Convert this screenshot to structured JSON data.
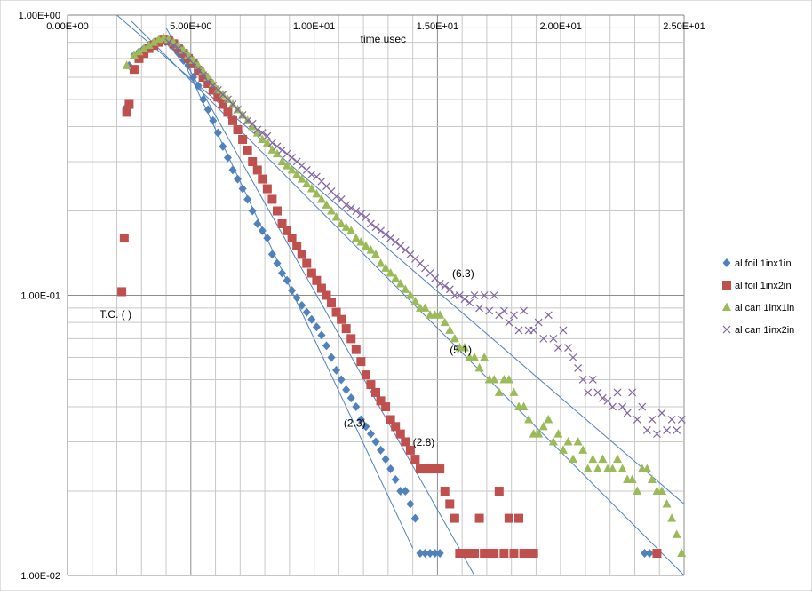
{
  "chart_data": {
    "type": "scatter",
    "title": "",
    "xlabel": "time usec",
    "ylabel": "",
    "xlim": [
      0,
      25
    ],
    "ylim": [
      0.01,
      1
    ],
    "y_scale": "log",
    "x_axis_position": "top",
    "grid": true,
    "legend_position": "right",
    "x_tick_labels": [
      "0.00E+00",
      "5.00E+00",
      "1.00E+01",
      "1.50E+01",
      "2.00E+01",
      "2.50E+01"
    ],
    "x_ticks": [
      0,
      5,
      10,
      15,
      20,
      25
    ],
    "y_tick_labels": [
      "1.00E+00",
      "1.00E-01",
      "1.00E-02"
    ],
    "y_ticks": [
      1,
      0.1,
      0.01
    ],
    "annotations": [
      {
        "text": "T.C. ( )",
        "x": 1.3,
        "y": 0.083
      },
      {
        "text": "(6.3)",
        "x": 15.6,
        "y": 0.116
      },
      {
        "text": "(5.1)",
        "x": 15.5,
        "y": 0.062
      },
      {
        "text": "(2.3)",
        "x": 11.2,
        "y": 0.034
      },
      {
        "text": "(2.8)",
        "x": 14.0,
        "y": 0.029
      }
    ],
    "series": [
      {
        "name": "al foil 1inx1in",
        "color": "#4F81BD",
        "marker": "diamond",
        "x": [
          2.2,
          2.4,
          2.5,
          2.7,
          2.9,
          3.1,
          3.3,
          3.5,
          3.7,
          3.9,
          4.1,
          4.3,
          4.5,
          4.7,
          4.9,
          5.1,
          5.3,
          5.5,
          5.7,
          5.9,
          6.1,
          6.3,
          6.5,
          6.7,
          6.9,
          7.1,
          7.3,
          7.5,
          7.7,
          7.9,
          8.1,
          8.3,
          8.5,
          8.7,
          8.9,
          9.1,
          9.3,
          9.5,
          9.7,
          9.9,
          10.1,
          10.3,
          10.5,
          10.7,
          10.9,
          11.1,
          11.3,
          11.5,
          11.7,
          11.9,
          12.1,
          12.3,
          12.5,
          12.7,
          12.9,
          13.1,
          13.3,
          13.5,
          13.7,
          13.9,
          14.1,
          14.3,
          14.5,
          14.7,
          14.9,
          15.1,
          23.4,
          23.6
        ],
        "y": [
          0.103,
          0.47,
          0.66,
          0.72,
          0.74,
          0.76,
          0.78,
          0.8,
          0.81,
          0.82,
          0.8,
          0.77,
          0.73,
          0.69,
          0.66,
          0.6,
          0.56,
          0.5,
          0.46,
          0.42,
          0.38,
          0.34,
          0.31,
          0.28,
          0.26,
          0.24,
          0.22,
          0.2,
          0.18,
          0.17,
          0.16,
          0.14,
          0.13,
          0.12,
          0.113,
          0.104,
          0.098,
          0.092,
          0.087,
          0.082,
          0.077,
          0.072,
          0.066,
          0.06,
          0.054,
          0.05,
          0.046,
          0.043,
          0.04,
          0.036,
          0.034,
          0.032,
          0.03,
          0.028,
          0.026,
          0.024,
          0.022,
          0.02,
          0.02,
          0.018,
          0.016,
          0.012,
          0.012,
          0.012,
          0.012,
          0.012,
          0.012,
          0.012
        ]
      },
      {
        "name": "al foil 1inx2in",
        "color": "#C0504D",
        "marker": "square",
        "x": [
          2.2,
          2.3,
          2.4,
          2.5,
          2.7,
          2.9,
          3.1,
          3.3,
          3.5,
          3.7,
          3.9,
          4.1,
          4.3,
          4.5,
          4.7,
          4.9,
          5.1,
          5.3,
          5.5,
          5.7,
          5.9,
          6.1,
          6.3,
          6.5,
          6.7,
          6.9,
          7.1,
          7.3,
          7.5,
          7.7,
          7.9,
          8.1,
          8.3,
          8.5,
          8.7,
          8.9,
          9.1,
          9.3,
          9.5,
          9.7,
          9.9,
          10.1,
          10.3,
          10.5,
          10.7,
          10.9,
          11.1,
          11.3,
          11.5,
          11.7,
          11.9,
          12.1,
          12.3,
          12.5,
          12.7,
          12.9,
          13.1,
          13.3,
          13.5,
          13.7,
          13.9,
          14.1,
          14.3,
          14.5,
          14.7,
          14.9,
          15.1,
          15.3,
          15.5,
          15.7,
          15.9,
          16.1,
          16.3,
          16.5,
          16.7,
          16.9,
          17.1,
          17.3,
          17.5,
          17.7,
          17.9,
          18.1,
          18.3,
          18.5,
          18.7,
          18.9,
          23.9
        ],
        "y": [
          0.103,
          0.16,
          0.45,
          0.48,
          0.64,
          0.7,
          0.73,
          0.76,
          0.78,
          0.8,
          0.82,
          0.81,
          0.79,
          0.76,
          0.73,
          0.7,
          0.67,
          0.63,
          0.6,
          0.57,
          0.54,
          0.51,
          0.48,
          0.45,
          0.42,
          0.39,
          0.36,
          0.33,
          0.3,
          0.28,
          0.26,
          0.24,
          0.22,
          0.2,
          0.18,
          0.17,
          0.16,
          0.15,
          0.14,
          0.13,
          0.12,
          0.113,
          0.106,
          0.1,
          0.094,
          0.087,
          0.082,
          0.076,
          0.07,
          0.064,
          0.058,
          0.052,
          0.048,
          0.045,
          0.042,
          0.04,
          0.036,
          0.034,
          0.032,
          0.03,
          0.028,
          0.026,
          0.024,
          0.024,
          0.024,
          0.024,
          0.024,
          0.02,
          0.018,
          0.016,
          0.012,
          0.012,
          0.012,
          0.012,
          0.016,
          0.012,
          0.012,
          0.012,
          0.02,
          0.012,
          0.016,
          0.012,
          0.016,
          0.012,
          0.012,
          0.012,
          0.012
        ]
      },
      {
        "name": "al can 1inx1in",
        "color": "#9BBB59",
        "marker": "triangle",
        "x": [
          2.4,
          2.7,
          2.9,
          3.1,
          3.3,
          3.5,
          3.7,
          3.9,
          4.1,
          4.3,
          4.5,
          4.7,
          4.9,
          5.1,
          5.3,
          5.5,
          5.7,
          5.9,
          6.1,
          6.3,
          6.5,
          6.7,
          6.9,
          7.1,
          7.3,
          7.5,
          7.7,
          7.9,
          8.1,
          8.3,
          8.5,
          8.7,
          8.9,
          9.1,
          9.3,
          9.5,
          9.7,
          9.9,
          10.1,
          10.3,
          10.5,
          10.7,
          10.9,
          11.1,
          11.3,
          11.5,
          11.7,
          11.9,
          12.1,
          12.3,
          12.5,
          12.7,
          12.9,
          13.1,
          13.3,
          13.5,
          13.7,
          13.9,
          14.1,
          14.3,
          14.5,
          14.7,
          14.9,
          15.1,
          15.3,
          15.5,
          15.7,
          15.9,
          16.1,
          16.3,
          16.5,
          16.7,
          16.9,
          17.1,
          17.3,
          17.5,
          17.7,
          17.9,
          18.1,
          18.3,
          18.5,
          18.7,
          18.9,
          19.1,
          19.3,
          19.5,
          19.7,
          19.9,
          20.1,
          20.3,
          20.5,
          20.7,
          20.9,
          21.1,
          21.3,
          21.5,
          21.7,
          21.9,
          22.1,
          22.3,
          22.5,
          22.7,
          22.9,
          23.1,
          23.3,
          23.5,
          23.7,
          23.9,
          24.1,
          24.3,
          24.5,
          24.7,
          24.9
        ],
        "y": [
          0.66,
          0.72,
          0.74,
          0.76,
          0.78,
          0.8,
          0.82,
          0.83,
          0.82,
          0.8,
          0.78,
          0.75,
          0.72,
          0.69,
          0.66,
          0.63,
          0.6,
          0.57,
          0.54,
          0.52,
          0.5,
          0.48,
          0.46,
          0.44,
          0.42,
          0.4,
          0.38,
          0.36,
          0.35,
          0.33,
          0.32,
          0.3,
          0.29,
          0.28,
          0.27,
          0.26,
          0.25,
          0.24,
          0.23,
          0.22,
          0.21,
          0.2,
          0.19,
          0.18,
          0.175,
          0.17,
          0.16,
          0.155,
          0.15,
          0.145,
          0.14,
          0.13,
          0.125,
          0.12,
          0.115,
          0.11,
          0.105,
          0.1,
          0.095,
          0.09,
          0.09,
          0.085,
          0.085,
          0.085,
          0.08,
          0.075,
          0.07,
          0.065,
          0.065,
          0.06,
          0.06,
          0.055,
          0.06,
          0.05,
          0.05,
          0.045,
          0.05,
          0.05,
          0.045,
          0.04,
          0.04,
          0.036,
          0.032,
          0.032,
          0.034,
          0.036,
          0.03,
          0.032,
          0.028,
          0.03,
          0.026,
          0.03,
          0.028,
          0.024,
          0.026,
          0.024,
          0.026,
          0.024,
          0.024,
          0.026,
          0.024,
          0.022,
          0.022,
          0.02,
          0.024,
          0.024,
          0.022,
          0.02,
          0.02,
          0.018,
          0.016,
          0.014,
          0.012
        ]
      },
      {
        "name": "al can 1inx2in",
        "color": "#8064A2",
        "marker": "x",
        "x": [
          4.1,
          4.3,
          4.5,
          4.7,
          4.9,
          5.1,
          5.3,
          5.5,
          5.7,
          5.9,
          6.1,
          6.3,
          6.5,
          6.7,
          6.9,
          7.1,
          7.3,
          7.5,
          7.7,
          7.9,
          8.1,
          8.3,
          8.5,
          8.7,
          8.9,
          9.1,
          9.3,
          9.5,
          9.7,
          9.9,
          10.1,
          10.3,
          10.5,
          10.7,
          10.9,
          11.1,
          11.3,
          11.5,
          11.7,
          11.9,
          12.1,
          12.3,
          12.5,
          12.7,
          12.9,
          13.1,
          13.3,
          13.5,
          13.7,
          13.9,
          14.1,
          14.3,
          14.5,
          14.7,
          14.9,
          15.1,
          15.3,
          15.5,
          15.7,
          15.9,
          16.1,
          16.3,
          16.5,
          16.7,
          16.9,
          17.1,
          17.3,
          17.5,
          17.7,
          17.9,
          18.1,
          18.3,
          18.5,
          18.7,
          18.9,
          19.1,
          19.3,
          19.5,
          19.7,
          19.9,
          20.1,
          20.3,
          20.5,
          20.7,
          20.9,
          21.1,
          21.3,
          21.5,
          21.7,
          21.9,
          22.1,
          22.3,
          22.5,
          22.7,
          22.9,
          23.1,
          23.3,
          23.5,
          23.7,
          23.9,
          24.1,
          24.3,
          24.5,
          24.7,
          24.9
        ],
        "y": [
          0.8,
          0.78,
          0.76,
          0.73,
          0.7,
          0.67,
          0.64,
          0.61,
          0.58,
          0.56,
          0.54,
          0.52,
          0.5,
          0.48,
          0.46,
          0.44,
          0.42,
          0.41,
          0.39,
          0.38,
          0.37,
          0.35,
          0.34,
          0.33,
          0.32,
          0.31,
          0.3,
          0.29,
          0.28,
          0.27,
          0.265,
          0.255,
          0.245,
          0.235,
          0.225,
          0.22,
          0.21,
          0.205,
          0.2,
          0.195,
          0.19,
          0.18,
          0.175,
          0.17,
          0.165,
          0.16,
          0.155,
          0.15,
          0.145,
          0.14,
          0.135,
          0.13,
          0.125,
          0.12,
          0.115,
          0.11,
          0.108,
          0.105,
          0.1,
          0.1,
          0.097,
          0.094,
          0.1,
          0.09,
          0.1,
          0.088,
          0.1,
          0.085,
          0.088,
          0.08,
          0.085,
          0.075,
          0.088,
          0.075,
          0.075,
          0.08,
          0.07,
          0.085,
          0.07,
          0.065,
          0.075,
          0.065,
          0.06,
          0.055,
          0.05,
          0.045,
          0.05,
          0.045,
          0.043,
          0.042,
          0.04,
          0.045,
          0.04,
          0.038,
          0.045,
          0.036,
          0.04,
          0.033,
          0.036,
          0.032,
          0.038,
          0.033,
          0.036,
          0.033,
          0.036
        ]
      }
    ],
    "trendlines": [
      {
        "series": "al foil 1inx1in",
        "color": "#4F81BD",
        "x0": 4.2,
        "y0": 0.85,
        "x1": 14.0,
        "y1": 0.0125
      },
      {
        "series": "al foil 1inx2in",
        "color": "#4F81BD",
        "x0": 4.0,
        "y0": 0.9,
        "x1": 16.5,
        "y1": 0.01
      },
      {
        "series": "al can 1inx1in",
        "color": "#4F81BD",
        "x0": 2.6,
        "y0": 0.95,
        "x1": 25.0,
        "y1": 0.01
      },
      {
        "series": "al can 1inx2in",
        "color": "#4F81BD",
        "x0": 2.0,
        "y0": 1.0,
        "x1": 25.0,
        "y1": 0.018
      }
    ]
  }
}
